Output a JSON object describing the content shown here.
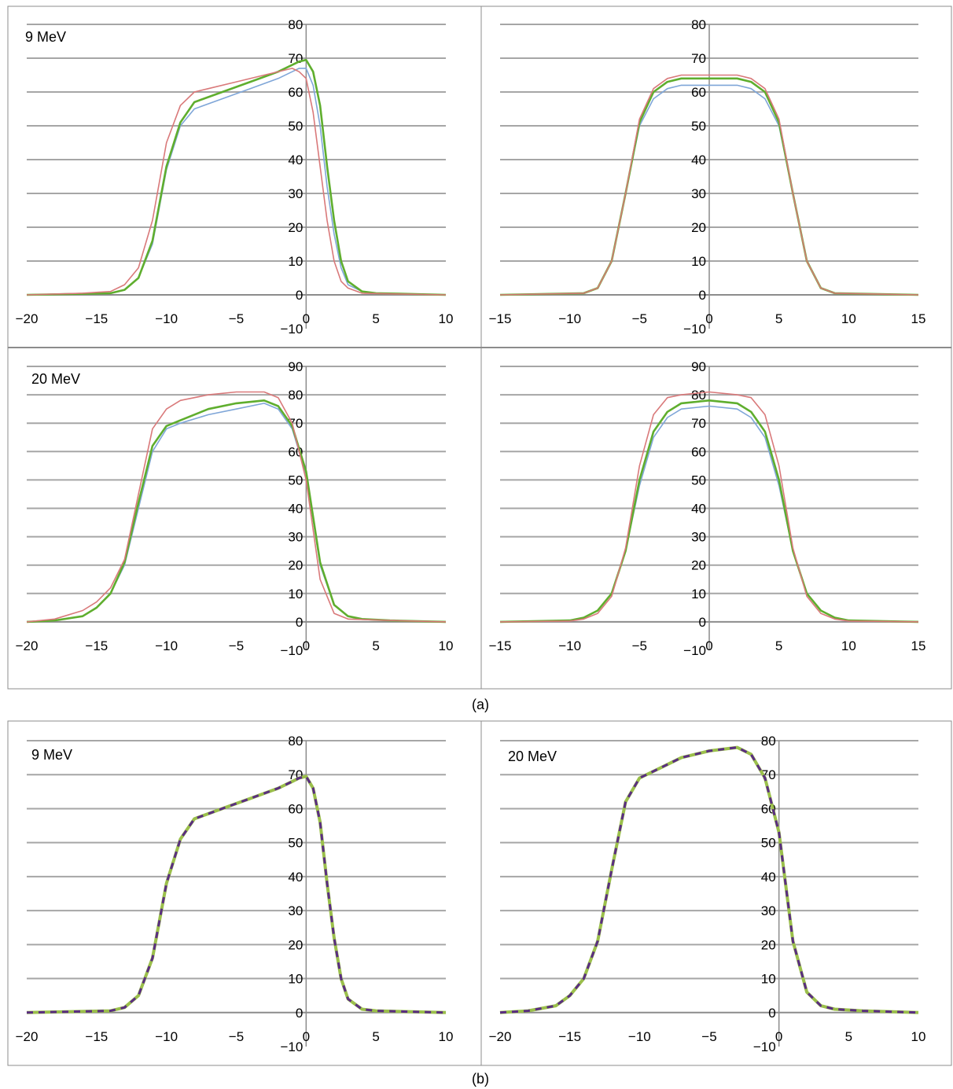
{
  "captions": {
    "a": "(a)",
    "b": "(b)"
  },
  "colors": {
    "grid": "#a6a6a6",
    "axis": "#8c8c8c",
    "frame": "#8c8c8c",
    "measured_blue": "#7fa6d8",
    "red": "#d9797a",
    "green": "#5fae2e",
    "dashed_green": "#9bbf4b",
    "dashed_purple": "#5a2d82"
  },
  "chart_data": [
    {
      "id": "a-top-left",
      "type": "line",
      "label": "9 MeV",
      "xlim": [
        -20,
        10
      ],
      "ylim": [
        -10,
        80
      ],
      "xticks": [
        -20,
        -15,
        -10,
        -5,
        0,
        5,
        10
      ],
      "yticks": [
        -10,
        0,
        10,
        20,
        30,
        40,
        50,
        60,
        70,
        80
      ],
      "series": [
        {
          "color": "blue",
          "x": [
            -20,
            -14,
            -13,
            -12,
            -11,
            -10,
            -9,
            -8,
            -6,
            -4,
            -2,
            -1,
            -0.5,
            0,
            0.5,
            1,
            1.5,
            2,
            2.5,
            3,
            4,
            5,
            7,
            10
          ],
          "y": [
            0,
            0.5,
            1.5,
            5,
            15,
            37,
            50,
            55,
            58,
            61,
            64,
            66,
            67,
            67,
            62,
            50,
            32,
            18,
            8,
            3,
            1,
            0.5,
            0.3,
            0
          ]
        },
        {
          "color": "green",
          "x": [
            -20,
            -14,
            -13,
            -12,
            -11,
            -10,
            -9,
            -8,
            -6,
            -4,
            -2,
            -1,
            -0.5,
            0,
            0.5,
            1,
            1.5,
            2,
            2.5,
            3,
            4,
            5,
            7,
            10
          ],
          "y": [
            0,
            0.5,
            1.5,
            5,
            16,
            38,
            51,
            57,
            60,
            63,
            66,
            68,
            69,
            69.5,
            66,
            56,
            38,
            22,
            10,
            4,
            1,
            0.5,
            0.3,
            0
          ]
        },
        {
          "color": "red",
          "x": [
            -20,
            -16,
            -14,
            -13,
            -12,
            -11,
            -10,
            -9,
            -8,
            -7,
            -5,
            -3,
            -1,
            -0.5,
            0,
            0.5,
            1,
            1.5,
            2,
            2.5,
            3,
            4,
            6,
            10
          ],
          "y": [
            0,
            0.5,
            1,
            3,
            8,
            22,
            45,
            56,
            60,
            61,
            63,
            65,
            67,
            66,
            64,
            54,
            38,
            22,
            10,
            4,
            2,
            0.5,
            0.3,
            0
          ]
        }
      ]
    },
    {
      "id": "a-top-right",
      "type": "line",
      "xlim": [
        -15,
        15
      ],
      "ylim": [
        -10,
        80
      ],
      "xticks": [
        -15,
        -10,
        -5,
        0,
        5,
        10,
        15
      ],
      "yticks": [
        -10,
        0,
        10,
        20,
        30,
        40,
        50,
        60,
        70,
        80
      ],
      "series": [
        {
          "color": "blue",
          "x": [
            -15,
            -9,
            -8,
            -7,
            -6,
            -5,
            -4,
            -3,
            -2,
            0,
            2,
            3,
            4,
            5,
            6,
            7,
            8,
            9,
            15
          ],
          "y": [
            0,
            0.5,
            2,
            10,
            30,
            50,
            58,
            61,
            62,
            62,
            62,
            61,
            58,
            50,
            30,
            10,
            2,
            0.5,
            0
          ]
        },
        {
          "color": "green",
          "x": [
            -15,
            -9,
            -8,
            -7,
            -6,
            -5,
            -4,
            -3,
            -2,
            0,
            2,
            3,
            4,
            5,
            6,
            7,
            8,
            9,
            15
          ],
          "y": [
            0,
            0.5,
            2,
            10,
            30,
            51,
            60,
            63,
            64,
            64,
            64,
            63,
            60,
            51,
            30,
            10,
            2,
            0.5,
            0
          ]
        },
        {
          "color": "red",
          "x": [
            -15,
            -9,
            -8,
            -7,
            -6,
            -5,
            -4,
            -3,
            -2,
            0,
            2,
            3,
            4,
            5,
            6,
            7,
            8,
            9,
            15
          ],
          "y": [
            0,
            0.5,
            2,
            10,
            30,
            52,
            61,
            64,
            65,
            65,
            65,
            64,
            61,
            52,
            30,
            10,
            2,
            0.5,
            0
          ]
        }
      ]
    },
    {
      "id": "a-bottom-left",
      "type": "line",
      "label": "20 MeV",
      "xlim": [
        -20,
        10
      ],
      "ylim": [
        -10,
        90
      ],
      "xticks": [
        -20,
        -15,
        -10,
        -5,
        0,
        5,
        10
      ],
      "yticks": [
        -10,
        0,
        10,
        20,
        30,
        40,
        50,
        60,
        70,
        80,
        90
      ],
      "series": [
        {
          "color": "blue",
          "x": [
            -20,
            -18,
            -16,
            -15,
            -14,
            -13,
            -12,
            -11,
            -10,
            -9,
            -7,
            -5,
            -3,
            -2,
            -1,
            0,
            1,
            2,
            3,
            4,
            6,
            10
          ],
          "y": [
            0,
            0.5,
            2,
            5,
            10,
            20,
            40,
            60,
            68,
            70,
            73,
            75,
            77,
            75,
            68,
            52,
            20,
            6,
            2,
            1,
            0.5,
            0
          ]
        },
        {
          "color": "green",
          "x": [
            -20,
            -18,
            -16,
            -15,
            -14,
            -13,
            -12,
            -11,
            -10,
            -9,
            -7,
            -5,
            -3,
            -2,
            -1,
            0,
            1,
            2,
            3,
            4,
            6,
            10
          ],
          "y": [
            0,
            0.5,
            2,
            5,
            10,
            21,
            42,
            62,
            69,
            71,
            75,
            77,
            78,
            76,
            69,
            53,
            21,
            6,
            2,
            1,
            0.5,
            0
          ]
        },
        {
          "color": "red",
          "x": [
            -20,
            -18,
            -16,
            -15,
            -14,
            -13,
            -12,
            -11,
            -10,
            -9,
            -7,
            -5,
            -3,
            -2,
            -1,
            0,
            1,
            2,
            3,
            6,
            10
          ],
          "y": [
            0,
            1,
            4,
            7,
            12,
            22,
            45,
            68,
            75,
            78,
            80,
            81,
            81,
            79,
            70,
            50,
            15,
            3,
            1,
            0.5,
            0
          ]
        }
      ]
    },
    {
      "id": "a-bottom-right",
      "type": "line",
      "xlim": [
        -15,
        15
      ],
      "ylim": [
        -10,
        90
      ],
      "xticks": [
        -15,
        -10,
        -5,
        0,
        5,
        10,
        15
      ],
      "yticks": [
        -10,
        0,
        10,
        20,
        30,
        40,
        50,
        60,
        70,
        80,
        90
      ],
      "series": [
        {
          "color": "blue",
          "x": [
            -15,
            -10,
            -9,
            -8,
            -7,
            -6,
            -5,
            -4,
            -3,
            -2,
            0,
            2,
            3,
            4,
            5,
            6,
            7,
            8,
            9,
            10,
            15
          ],
          "y": [
            0,
            0.5,
            1.5,
            4,
            10,
            25,
            48,
            65,
            72,
            75,
            76,
            75,
            72,
            65,
            48,
            25,
            10,
            4,
            1.5,
            0.5,
            0
          ]
        },
        {
          "color": "green",
          "x": [
            -15,
            -10,
            -9,
            -8,
            -7,
            -6,
            -5,
            -4,
            -3,
            -2,
            0,
            2,
            3,
            4,
            5,
            6,
            7,
            8,
            9,
            10,
            15
          ],
          "y": [
            0,
            0.5,
            1.5,
            4,
            10,
            25,
            50,
            67,
            74,
            77,
            78,
            77,
            74,
            67,
            50,
            25,
            10,
            4,
            1.5,
            0.5,
            0
          ]
        },
        {
          "color": "red",
          "x": [
            -15,
            -10,
            -9,
            -8,
            -7,
            -6,
            -5,
            -4,
            -3,
            -2,
            0,
            2,
            3,
            4,
            5,
            6,
            7,
            8,
            9,
            10,
            15
          ],
          "y": [
            0,
            0.3,
            1,
            3,
            9,
            26,
            55,
            73,
            79,
            80,
            81,
            80,
            79,
            73,
            55,
            26,
            9,
            3,
            1,
            0.3,
            0
          ]
        }
      ]
    },
    {
      "id": "b-left",
      "type": "line",
      "label": "9 MeV",
      "xlim": [
        -20,
        10
      ],
      "ylim": [
        -10,
        80
      ],
      "xticks": [
        -20,
        -15,
        -10,
        -5,
        0,
        5,
        10
      ],
      "yticks": [
        -10,
        0,
        10,
        20,
        30,
        40,
        50,
        60,
        70,
        80
      ],
      "series": [
        {
          "color": "dashed_green",
          "dash": false,
          "x": [
            -20,
            -14,
            -13,
            -12,
            -11,
            -10,
            -9,
            -8,
            -6,
            -4,
            -2,
            -1,
            -0.5,
            0,
            0.5,
            1,
            1.5,
            2,
            2.5,
            3,
            4,
            5,
            7,
            10
          ],
          "y": [
            0,
            0.5,
            1.5,
            5,
            16,
            38,
            51,
            57,
            60,
            63,
            66,
            68,
            69,
            69.5,
            66,
            56,
            38,
            22,
            10,
            4,
            1,
            0.5,
            0.3,
            0
          ]
        },
        {
          "color": "dashed_purple",
          "dash": true,
          "x": [
            -20,
            -14,
            -13,
            -12,
            -11,
            -10,
            -9,
            -8,
            -6,
            -4,
            -2,
            -1,
            -0.5,
            0,
            0.5,
            1,
            1.5,
            2,
            2.5,
            3,
            4,
            5,
            7,
            10
          ],
          "y": [
            0,
            0.5,
            1.5,
            5,
            16,
            38,
            51,
            57,
            60,
            63,
            66,
            68,
            69,
            69.5,
            66,
            56,
            38,
            22,
            10,
            4,
            1,
            0.5,
            0.3,
            0
          ]
        }
      ]
    },
    {
      "id": "b-right",
      "type": "line",
      "label": "20 MeV",
      "xlim": [
        -20,
        10
      ],
      "ylim": [
        -10,
        80
      ],
      "xticks": [
        -20,
        -15,
        -10,
        -5,
        0,
        5,
        10
      ],
      "yticks": [
        -10,
        0,
        10,
        20,
        30,
        40,
        50,
        60,
        70,
        80
      ],
      "series": [
        {
          "color": "dashed_green",
          "dash": false,
          "x": [
            -20,
            -18,
            -16,
            -15,
            -14,
            -13,
            -12,
            -11,
            -10,
            -9,
            -7,
            -5,
            -3,
            -2,
            -1,
            0,
            1,
            2,
            3,
            4,
            6,
            10
          ],
          "y": [
            0,
            0.5,
            2,
            5,
            10,
            21,
            42,
            62,
            69,
            71,
            75,
            77,
            78,
            76,
            69,
            53,
            21,
            6,
            2,
            1,
            0.5,
            0
          ]
        },
        {
          "color": "dashed_purple",
          "dash": true,
          "x": [
            -20,
            -18,
            -16,
            -15,
            -14,
            -13,
            -12,
            -11,
            -10,
            -9,
            -7,
            -5,
            -3,
            -2,
            -1,
            0,
            1,
            2,
            3,
            4,
            6,
            10
          ],
          "y": [
            0,
            0.5,
            2,
            5,
            10,
            21,
            42,
            62,
            69,
            71,
            75,
            77,
            78,
            76,
            69,
            53,
            21,
            6,
            2,
            1,
            0.5,
            0
          ]
        }
      ]
    }
  ]
}
